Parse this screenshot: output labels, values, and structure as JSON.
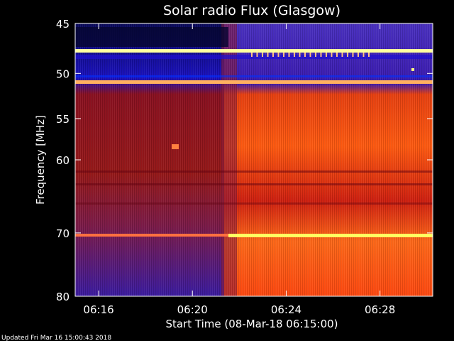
{
  "chart_data": {
    "type": "heatmap",
    "title": "Solar radio Flux (Glasgow)",
    "xlabel": "Start Time (08-Mar-18 06:15:00)",
    "ylabel": "Frequency [MHz]",
    "x_ticks": [
      "06:16",
      "06:20",
      "06:24",
      "06:28"
    ],
    "y_ticks": [
      "45",
      "50",
      "55",
      "60",
      "70",
      "80"
    ],
    "x_range": [
      "06:15:00",
      "06:30:15"
    ],
    "y_range": [
      45,
      80
    ],
    "y_scale": "log",
    "colormap": "blue-red-yellow-white",
    "events": [
      {
        "name": "background step-up",
        "time": "06:21:30"
      },
      {
        "name": "bright narrowband emission",
        "freq_mhz": 73.5
      },
      {
        "name": "intermittent narrowband emission",
        "freq_mhz": 49
      },
      {
        "name": "bright narrowband emission",
        "freq_mhz": 53
      }
    ]
  },
  "footer": {
    "updated": "Updated Fri Mar 16 15:00:43 2018"
  },
  "colors": {
    "background": "#000000",
    "text": "#ffffff",
    "low_intensity": "#1a00a0",
    "mid_intensity": "#a01010",
    "high_intensity": "#ff5a10",
    "peak_intensity": "#ffff80"
  }
}
